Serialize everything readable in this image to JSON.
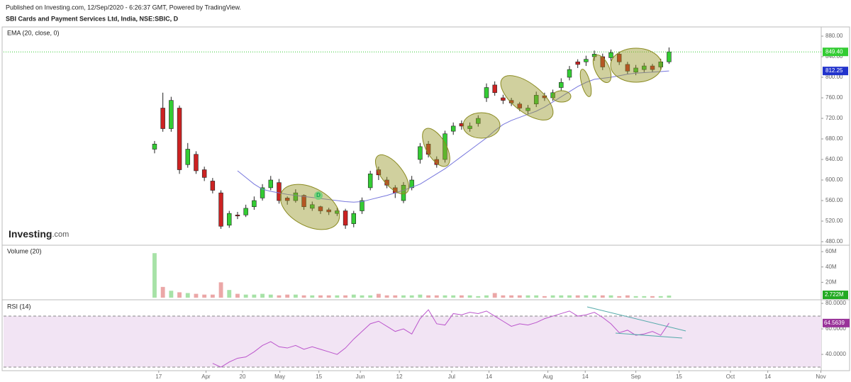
{
  "chart_data": [
    {
      "type": "candlestick",
      "subtitle": "Published on Investing.com, 12/Sep/2020 - 6:26:37 GMT, Powered by TradingView.",
      "title": "SBI Cards and Payment Services Ltd, India, NSE:SBIC, D",
      "indicator": "EMA (20, close, 0)",
      "logo_name": "Investing",
      "logo_suffix": ".com",
      "marker_label": "D",
      "up_color": "#33cc33",
      "down_color": "#cc2222",
      "ema_color": "#7777dd",
      "open": [
        660,
        740,
        700,
        740,
        630,
        650,
        620,
        598,
        575,
        512,
        532,
        532,
        548,
        565,
        585,
        595,
        565,
        560,
        570,
        545,
        548,
        542,
        535,
        540,
        515,
        540,
        585,
        620,
        600,
        585,
        560,
        585,
        640,
        670,
        640,
        640,
        695,
        710,
        700,
        710,
        760,
        785,
        760,
        755,
        748,
        735,
        748,
        764,
        760,
        780,
        800,
        830,
        830,
        840,
        840,
        838,
        845,
        825,
        810,
        815,
        822,
        820,
        830
      ],
      "high": [
        676,
        770,
        762,
        745,
        672,
        656,
        626,
        604,
        580,
        540,
        538,
        552,
        568,
        592,
        608,
        602,
        568,
        582,
        572,
        558,
        550,
        546,
        546,
        544,
        540,
        566,
        618,
        626,
        606,
        590,
        596,
        608,
        672,
        676,
        646,
        696,
        712,
        716,
        712,
        726,
        788,
        792,
        766,
        760,
        752,
        746,
        772,
        770,
        776,
        798,
        822,
        835,
        842,
        852,
        846,
        854,
        850,
        830,
        824,
        828,
        826,
        836,
        858
      ],
      "low": [
        652,
        694,
        694,
        612,
        624,
        612,
        598,
        574,
        505,
        507,
        524,
        528,
        542,
        560,
        580,
        554,
        552,
        556,
        542,
        540,
        534,
        532,
        530,
        505,
        508,
        534,
        580,
        600,
        584,
        565,
        555,
        580,
        632,
        644,
        624,
        634,
        688,
        698,
        694,
        704,
        752,
        764,
        748,
        744,
        734,
        728,
        742,
        754,
        754,
        774,
        794,
        818,
        822,
        832,
        814,
        832,
        824,
        806,
        804,
        810,
        810,
        814,
        826
      ],
      "close": [
        670,
        700,
        755,
        620,
        660,
        618,
        605,
        580,
        510,
        535,
        530,
        545,
        560,
        585,
        600,
        560,
        560,
        575,
        548,
        552,
        540,
        538,
        540,
        512,
        535,
        560,
        612,
        610,
        590,
        575,
        590,
        600,
        665,
        650,
        630,
        690,
        705,
        705,
        705,
        720,
        780,
        770,
        755,
        750,
        740,
        740,
        765,
        760,
        770,
        790,
        815,
        825,
        835,
        845,
        820,
        848,
        830,
        812,
        818,
        822,
        815,
        830,
        849.4
      ],
      "ema": [
        null,
        null,
        null,
        null,
        null,
        null,
        null,
        null,
        null,
        null,
        618,
        605,
        592,
        582,
        578,
        575,
        572,
        570,
        568,
        566,
        564,
        562,
        560,
        558,
        557,
        558,
        562,
        566,
        570,
        575,
        580,
        586,
        592,
        602,
        612,
        622,
        634,
        646,
        658,
        670,
        682,
        696,
        708,
        716,
        722,
        728,
        734,
        742,
        752,
        762,
        772,
        782,
        790,
        796,
        798,
        800,
        803,
        806,
        808,
        809,
        810,
        811,
        812.25
      ],
      "last_price_label": "849.40",
      "ema_label": "812.25",
      "xlim": [
        -18.2,
        80.34
      ],
      "ylim": [
        474.5,
        895.2
      ],
      "yticks": [
        {
          "value": 480,
          "label": "480.00"
        },
        {
          "value": 520,
          "label": "520.00"
        },
        {
          "value": 560,
          "label": "560.00"
        },
        {
          "value": 600,
          "label": "600.00"
        },
        {
          "value": 640,
          "label": "640.00"
        },
        {
          "value": 680,
          "label": "680.00"
        },
        {
          "value": 720,
          "label": "720.00"
        },
        {
          "value": 760,
          "label": "760.00"
        },
        {
          "value": 800,
          "label": "800.00"
        },
        {
          "value": 840,
          "label": "840.00"
        },
        {
          "value": 880,
          "label": "880.00"
        }
      ]
    },
    {
      "type": "bar",
      "title": "Volume (20)",
      "values": [
        58,
        14,
        9,
        7,
        6,
        5,
        4,
        4,
        20,
        10,
        5,
        4,
        4,
        5,
        4,
        3,
        4,
        4,
        3,
        3,
        3,
        3,
        3,
        3,
        4,
        3,
        3,
        5,
        3,
        3,
        3,
        3,
        4,
        3,
        3,
        3,
        3,
        3,
        3,
        2,
        3,
        6,
        3,
        3,
        3,
        3,
        3,
        2,
        3,
        3,
        3,
        3,
        3,
        3,
        3,
        3,
        2,
        3,
        2,
        2,
        2,
        2,
        2.722
      ],
      "last_label": "2.722M",
      "ylim": [
        0,
        66.5
      ],
      "yticks": [
        {
          "value": 20,
          "label": "20M"
        },
        {
          "value": 40,
          "label": "40M"
        },
        {
          "value": 60,
          "label": "60M"
        }
      ]
    },
    {
      "type": "line",
      "title": "RSI (14)",
      "color": "#bb55cc",
      "band_color": "#f2e4f4",
      "values": [
        null,
        null,
        null,
        null,
        null,
        null,
        null,
        33,
        30,
        34,
        37,
        38,
        42,
        47,
        50,
        46,
        45,
        47,
        44,
        46,
        44,
        42,
        40,
        45,
        52,
        58,
        64,
        66,
        62,
        58,
        60,
        56,
        68,
        75,
        64,
        63,
        72,
        71,
        73,
        72,
        74,
        70,
        66,
        62,
        64,
        63,
        65,
        68,
        70,
        72,
        74,
        70,
        71,
        73,
        69,
        64,
        57,
        59,
        55,
        56,
        58,
        55,
        64.5639
      ],
      "last_label": "64.5639",
      "band": [
        30,
        70
      ],
      "ylim": [
        27.8,
        81.7
      ],
      "yticks": [
        {
          "value": 40,
          "label": "40.0000"
        },
        {
          "value": 60,
          "label": "60.0000"
        },
        {
          "value": 80,
          "label": "80.0000"
        }
      ],
      "xticks": [
        {
          "value": 0.5,
          "label": "17"
        },
        {
          "value": 6.2,
          "label": "Apr"
        },
        {
          "value": 10.6,
          "label": "20"
        },
        {
          "value": 15.1,
          "label": "May"
        },
        {
          "value": 19.8,
          "label": "15"
        },
        {
          "value": 24.8,
          "label": "Jun"
        },
        {
          "value": 29.5,
          "label": "12"
        },
        {
          "value": 35.8,
          "label": "Jul"
        },
        {
          "value": 40.3,
          "label": "14"
        },
        {
          "value": 47.4,
          "label": "Aug"
        },
        {
          "value": 51.9,
          "label": "14"
        },
        {
          "value": 58.0,
          "label": "Sep"
        },
        {
          "value": 63.2,
          "label": "15"
        },
        {
          "value": 69.4,
          "label": "Oct"
        },
        {
          "value": 73.9,
          "label": "14"
        },
        {
          "value": 80.3,
          "label": "Nov"
        }
      ]
    }
  ]
}
